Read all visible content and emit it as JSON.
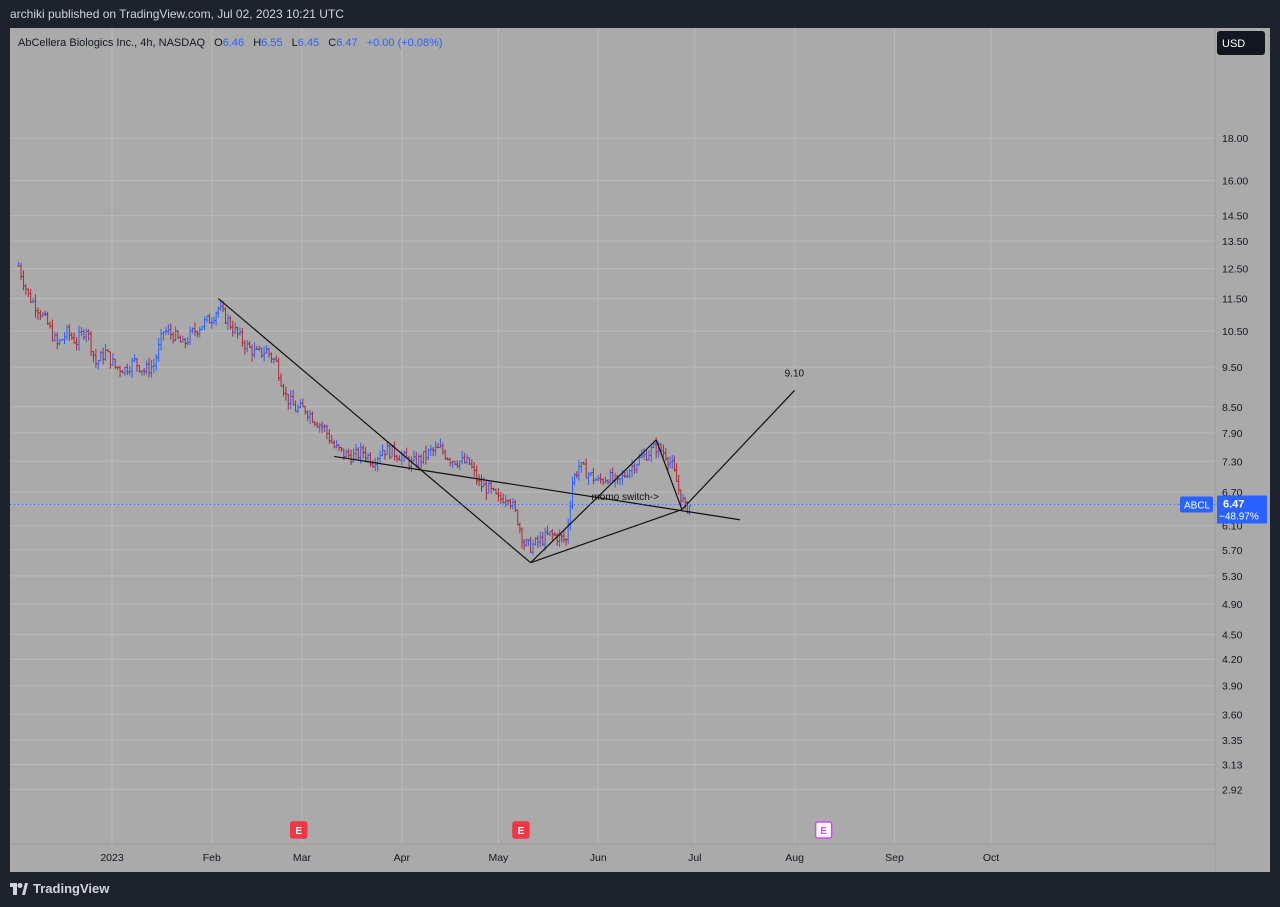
{
  "header": {
    "publisher_line": "archiki published on TradingView.com, Jul 02, 2023 10:21 UTC"
  },
  "legend": {
    "symbol_desc": "AbCellera Biologics Inc., 4h, NASDAQ",
    "o_label": "O",
    "o_value": "6.46",
    "h_label": "H",
    "h_value": "6.55",
    "l_label": "L",
    "l_value": "6.45",
    "c_label": "C",
    "c_value": "6.47",
    "change": "+0.00 (+0.08%)"
  },
  "currency": "USD",
  "price_tag": {
    "ticker": "ABCL",
    "price": "6.47",
    "pct": "−48.97%"
  },
  "footer": {
    "brand": "TradingView"
  },
  "colors": {
    "up": "#2962ff",
    "down": "#b22833",
    "background": "#aaaaaa",
    "grid": "#b9b9b9",
    "line": "#111111",
    "earnings_past": "#f23645",
    "earnings_future": "#e040fb",
    "price_line": "#2962ff"
  },
  "chart_data": {
    "type": "ohlc",
    "scale": "log",
    "y_ticks": [
      18.0,
      16.0,
      14.5,
      13.5,
      12.5,
      11.5,
      10.5,
      9.5,
      8.5,
      7.9,
      7.3,
      6.7,
      6.1,
      5.7,
      5.3,
      4.9,
      4.5,
      4.2,
      3.9,
      3.6,
      3.35,
      3.13,
      2.92
    ],
    "y_tick_labels": [
      "18.00",
      "16.00",
      "14.50",
      "13.50",
      "12.50",
      "11.50",
      "10.50",
      "9.50",
      "8.50",
      "7.90",
      "7.30",
      "6.70",
      "6.10",
      "5.70",
      "5.30",
      "4.90",
      "4.50",
      "4.20",
      "3.90",
      "3.60",
      "3.35",
      "3.13",
      "2.92"
    ],
    "x_ticks": [
      {
        "label": "2023",
        "date": "2023-01-01"
      },
      {
        "label": "Feb",
        "date": "2023-02-01"
      },
      {
        "label": "Mar",
        "date": "2023-03-01"
      },
      {
        "label": "Apr",
        "date": "2023-04-01"
      },
      {
        "label": "May",
        "date": "2023-05-01"
      },
      {
        "label": "Jun",
        "date": "2023-06-01"
      },
      {
        "label": "Jul",
        "date": "2023-07-01"
      },
      {
        "label": "Aug",
        "date": "2023-08-01"
      },
      {
        "label": "Sep",
        "date": "2023-09-01"
      },
      {
        "label": "Oct",
        "date": "2023-10-01"
      }
    ],
    "last_price": 6.47,
    "series": [
      {
        "date": "2022-12-03",
        "close": 12.6
      },
      {
        "date": "2022-12-06",
        "close": 11.6
      },
      {
        "date": "2022-12-09",
        "close": 11.2
      },
      {
        "date": "2022-12-12",
        "close": 10.7
      },
      {
        "date": "2022-12-15",
        "close": 10.1
      },
      {
        "date": "2022-12-18",
        "close": 10.45
      },
      {
        "date": "2022-12-21",
        "close": 10.2
      },
      {
        "date": "2022-12-24",
        "close": 10.6
      },
      {
        "date": "2022-12-27",
        "close": 9.6
      },
      {
        "date": "2022-12-30",
        "close": 9.9
      },
      {
        "date": "2023-01-02",
        "close": 9.5
      },
      {
        "date": "2023-01-05",
        "close": 9.45
      },
      {
        "date": "2023-01-08",
        "close": 9.65
      },
      {
        "date": "2023-01-11",
        "close": 9.4
      },
      {
        "date": "2023-01-14",
        "close": 9.55
      },
      {
        "date": "2023-01-17",
        "close": 10.5
      },
      {
        "date": "2023-01-20",
        "close": 10.4
      },
      {
        "date": "2023-01-23",
        "close": 10.1
      },
      {
        "date": "2023-01-26",
        "close": 10.45
      },
      {
        "date": "2023-01-29",
        "close": 10.7
      },
      {
        "date": "2023-02-01",
        "close": 10.9
      },
      {
        "date": "2023-02-03",
        "close": 11.2
      },
      {
        "date": "2023-02-06",
        "close": 10.8
      },
      {
        "date": "2023-02-09",
        "close": 10.4
      },
      {
        "date": "2023-02-12",
        "close": 10.05
      },
      {
        "date": "2023-02-15",
        "close": 9.85
      },
      {
        "date": "2023-02-18",
        "close": 9.95
      },
      {
        "date": "2023-02-21",
        "close": 9.6
      },
      {
        "date": "2023-02-24",
        "close": 8.75
      },
      {
        "date": "2023-02-27",
        "close": 8.45
      },
      {
        "date": "2023-03-02",
        "close": 8.45
      },
      {
        "date": "2023-03-05",
        "close": 8.2
      },
      {
        "date": "2023-03-08",
        "close": 8.0
      },
      {
        "date": "2023-03-11",
        "close": 7.6
      },
      {
        "date": "2023-03-14",
        "close": 7.45
      },
      {
        "date": "2023-03-17",
        "close": 7.4
      },
      {
        "date": "2023-03-20",
        "close": 7.5
      },
      {
        "date": "2023-03-23",
        "close": 7.3
      },
      {
        "date": "2023-03-26",
        "close": 7.55
      },
      {
        "date": "2023-03-29",
        "close": 7.5
      },
      {
        "date": "2023-04-01",
        "close": 7.4
      },
      {
        "date": "2023-04-04",
        "close": 7.25
      },
      {
        "date": "2023-04-07",
        "close": 7.35
      },
      {
        "date": "2023-04-10",
        "close": 7.5
      },
      {
        "date": "2023-04-13",
        "close": 7.55
      },
      {
        "date": "2023-04-16",
        "close": 7.35
      },
      {
        "date": "2023-04-19",
        "close": 7.3
      },
      {
        "date": "2023-04-22",
        "close": 7.25
      },
      {
        "date": "2023-04-25",
        "close": 6.85
      },
      {
        "date": "2023-04-28",
        "close": 6.75
      },
      {
        "date": "2023-05-01",
        "close": 6.55
      },
      {
        "date": "2023-05-04",
        "close": 6.65
      },
      {
        "date": "2023-05-07",
        "close": 6.2
      },
      {
        "date": "2023-05-09",
        "close": 5.8
      },
      {
        "date": "2023-05-11",
        "close": 5.75
      },
      {
        "date": "2023-05-14",
        "close": 5.85
      },
      {
        "date": "2023-05-17",
        "close": 5.95
      },
      {
        "date": "2023-05-20",
        "close": 5.9
      },
      {
        "date": "2023-05-22",
        "close": 5.85
      },
      {
        "date": "2023-05-24",
        "close": 6.9
      },
      {
        "date": "2023-05-26",
        "close": 7.2
      },
      {
        "date": "2023-05-29",
        "close": 7.05
      },
      {
        "date": "2023-06-01",
        "close": 6.9
      },
      {
        "date": "2023-06-04",
        "close": 7.0
      },
      {
        "date": "2023-06-07",
        "close": 6.85
      },
      {
        "date": "2023-06-10",
        "close": 7.1
      },
      {
        "date": "2023-06-13",
        "close": 7.3
      },
      {
        "date": "2023-06-16",
        "close": 7.45
      },
      {
        "date": "2023-06-19",
        "close": 7.6
      },
      {
        "date": "2023-06-22",
        "close": 7.45
      },
      {
        "date": "2023-06-24",
        "close": 7.2
      },
      {
        "date": "2023-06-26",
        "close": 6.75
      },
      {
        "date": "2023-06-28",
        "close": 6.4
      },
      {
        "date": "2023-06-30",
        "close": 6.47
      }
    ],
    "drawings": {
      "lines": [
        {
          "from": {
            "date": "2023-02-03",
            "price": 11.5
          },
          "to": {
            "date": "2023-05-11",
            "price": 5.5
          }
        },
        {
          "from": {
            "date": "2023-05-11",
            "price": 5.5
          },
          "to": {
            "date": "2023-06-27",
            "price": 6.38
          }
        },
        {
          "from": {
            "date": "2023-03-11",
            "price": 7.4
          },
          "to": {
            "date": "2023-07-15",
            "price": 6.2
          }
        },
        {
          "from": {
            "date": "2023-05-11",
            "price": 5.5
          },
          "to": {
            "date": "2023-06-19",
            "price": 7.75
          }
        },
        {
          "from": {
            "date": "2023-06-19",
            "price": 7.75
          },
          "to": {
            "date": "2023-06-27",
            "price": 6.38
          }
        },
        {
          "from": {
            "date": "2023-06-27",
            "price": 6.38
          },
          "to": {
            "date": "2023-08-01",
            "price": 8.9
          }
        }
      ],
      "labels": [
        {
          "text": "9.10",
          "date": "2023-08-01",
          "price": 9.25
        },
        {
          "text": "momo switch->",
          "date": "2023-06-02",
          "price": 6.55
        }
      ]
    },
    "events": [
      {
        "label": "E",
        "date": "2023-02-28",
        "kind": "past"
      },
      {
        "label": "E",
        "date": "2023-05-08",
        "kind": "past"
      },
      {
        "label": "E",
        "date": "2023-08-10",
        "kind": "future"
      }
    ]
  }
}
